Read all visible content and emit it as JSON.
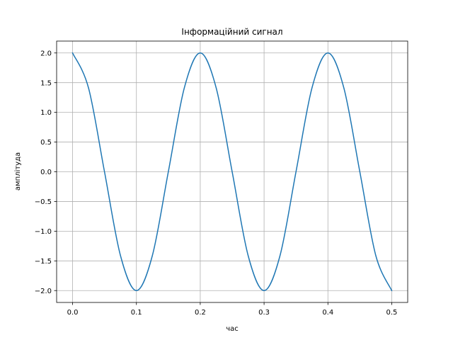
{
  "chart_data": {
    "type": "line",
    "title": "Інформаційний сигнал",
    "xlabel": "час",
    "ylabel": "амплітуда",
    "xlim": [
      -0.025,
      0.525
    ],
    "ylim": [
      -2.2,
      2.2
    ],
    "grid": true,
    "x_ticks": [
      0.0,
      0.1,
      0.2,
      0.3,
      0.4,
      0.5
    ],
    "x_tick_labels": [
      "0.0",
      "0.1",
      "0.2",
      "0.3",
      "0.4",
      "0.5"
    ],
    "y_ticks": [
      2.0,
      1.5,
      1.0,
      0.5,
      0.0,
      -0.5,
      -1.0,
      -1.5,
      -2.0
    ],
    "y_tick_labels": [
      "2.0",
      "1.5",
      "1.0",
      "0.5",
      "0.0",
      "−0.5",
      "−1.0",
      "−1.5",
      "−2.0"
    ],
    "series": [
      {
        "color": "#1f77b4",
        "x": [
          0.0,
          0.025,
          0.05,
          0.075,
          0.1,
          0.125,
          0.15,
          0.175,
          0.2,
          0.225,
          0.25,
          0.275,
          0.3,
          0.325,
          0.35,
          0.375,
          0.4,
          0.425,
          0.45,
          0.475,
          0.5
        ],
        "y": [
          2.0,
          1.41,
          0.0,
          -1.41,
          -2.0,
          -1.41,
          0.0,
          1.41,
          2.0,
          1.41,
          0.0,
          -1.41,
          -2.0,
          -1.41,
          0.0,
          1.41,
          2.0,
          1.41,
          0.0,
          -1.41,
          -2.0
        ]
      }
    ]
  }
}
